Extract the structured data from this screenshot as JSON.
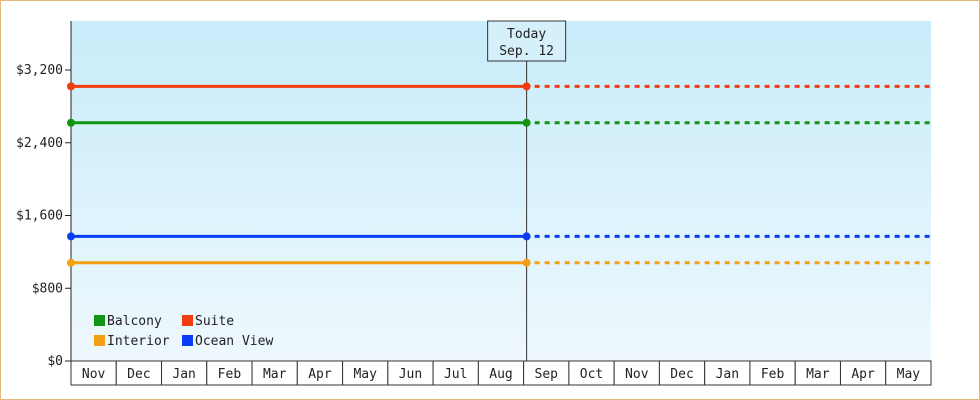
{
  "chart_data": {
    "type": "line",
    "title": "",
    "xlabel": "",
    "ylabel": "",
    "ylim": [
      0,
      3200
    ],
    "y_ticks": [
      {
        "value": 0,
        "label": "$0"
      },
      {
        "value": 800,
        "label": "$800"
      },
      {
        "value": 1600,
        "label": "$1,600"
      },
      {
        "value": 2400,
        "label": "$2,400"
      },
      {
        "value": 3200,
        "label": "$3,200"
      }
    ],
    "categories": [
      "Nov",
      "Dec",
      "Jan",
      "Feb",
      "Mar",
      "Apr",
      "May",
      "Jun",
      "Jul",
      "Aug",
      "Sep",
      "Oct",
      "Nov",
      "Dec",
      "Jan",
      "Feb",
      "Mar",
      "Apr",
      "May"
    ],
    "today": {
      "line1": "Today",
      "line2": "Sep. 12",
      "index": 10
    },
    "series": [
      {
        "name": "Suite",
        "value": 3020,
        "color": "#f03c10"
      },
      {
        "name": "Balcony",
        "value": 2620,
        "color": "#129612"
      },
      {
        "name": "Ocean View",
        "value": 1370,
        "color": "#0a3cf5"
      },
      {
        "name": "Interior",
        "value": 1080,
        "color": "#f5a014"
      }
    ],
    "legend": {
      "placement": "bottom-left",
      "rows": [
        [
          "Balcony",
          "Suite"
        ],
        [
          "Interior",
          "Ocean View"
        ]
      ]
    },
    "colors": {
      "plot_top": "#c8ecfa",
      "plot_bottom": "#eef8fd",
      "frame_border": "#e0b880"
    }
  }
}
